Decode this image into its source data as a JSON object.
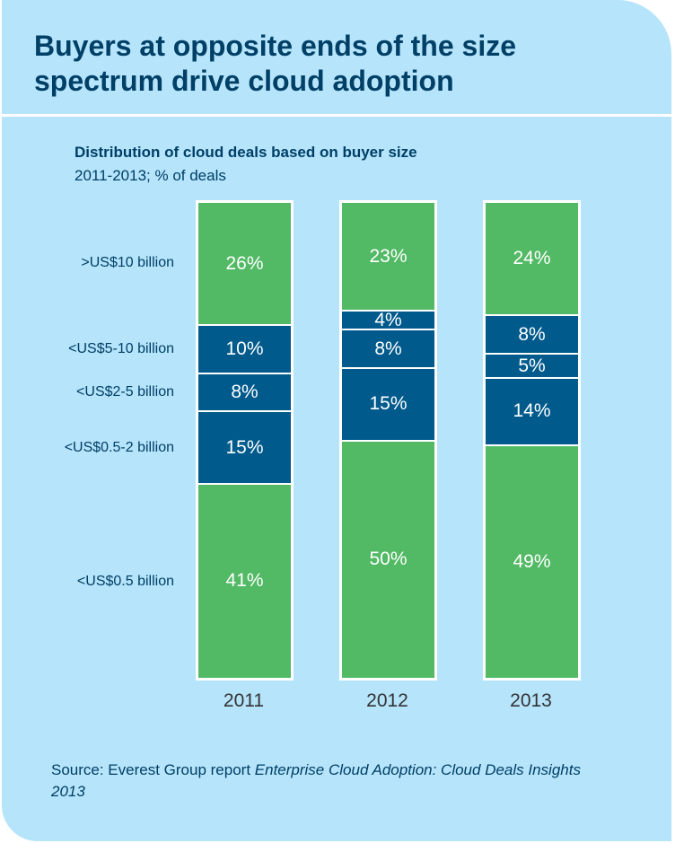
{
  "title": "Buyers at opposite ends of the size spectrum drive cloud adoption",
  "source": {
    "prefix": "Source: Everest Group report ",
    "report": "Enterprise Cloud Adoption: Cloud Deals Insights 2013"
  },
  "colors": {
    "background": "#b5e4fb",
    "title": "#003f66",
    "small_segments": "#005a8c",
    "end_segments": "#52b965"
  },
  "chart_data": {
    "type": "bar",
    "stacked": true,
    "title": "Distribution of cloud deals based on buyer size",
    "subtitle": "2011-2013; % of deals",
    "categories": [
      "2011",
      "2012",
      "2013"
    ],
    "series": [
      {
        "name": "<US$0.5 billion",
        "values": [
          41,
          50,
          49
        ],
        "color": "#52b965"
      },
      {
        "name": "<US$0.5-2 billion",
        "values": [
          15,
          15,
          14
        ],
        "color": "#005a8c"
      },
      {
        "name": "<US$2-5 billion",
        "values": [
          8,
          8,
          5
        ],
        "color": "#005a8c"
      },
      {
        "name": "<US$5-10 billion",
        "values": [
          10,
          4,
          8
        ],
        "color": "#005a8c"
      },
      {
        "name": ">US$10 billion",
        "values": [
          26,
          23,
          24
        ],
        "color": "#52b965"
      }
    ],
    "value_suffix": "%",
    "ylim": [
      0,
      100
    ],
    "grid": false,
    "legend": "left"
  }
}
